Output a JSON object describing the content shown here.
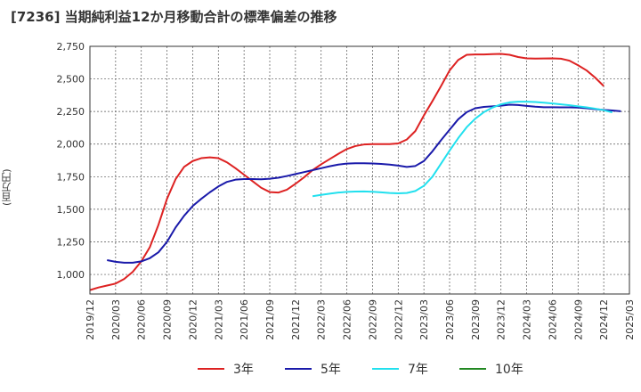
{
  "chart_data": {
    "type": "line",
    "title": "[7236]  当期純利益12か月移動合計の標準偏差の推移",
    "ylabel": "(百万円)",
    "xlabel": "",
    "ylim": [
      850,
      2750
    ],
    "yticks": [
      1000,
      1250,
      1500,
      1750,
      2000,
      2250,
      2500,
      2750
    ],
    "ytick_labels": [
      "1,000",
      "1,250",
      "1,500",
      "1,750",
      "2,000",
      "2,250",
      "2,500",
      "2,750"
    ],
    "x_labels": [
      "2019/12",
      "2020/03",
      "2020/06",
      "2020/09",
      "2020/12",
      "2021/03",
      "2021/06",
      "2021/09",
      "2021/12",
      "2022/03",
      "2022/06",
      "2022/09",
      "2022/12",
      "2023/03",
      "2023/06",
      "2023/09",
      "2023/12",
      "2024/03",
      "2024/06",
      "2024/09",
      "2024/12",
      "2025/03"
    ],
    "grid": true,
    "legend_position": "bottom",
    "series": [
      {
        "name": "3年",
        "color": "#dd2222",
        "start_index": 0,
        "values": [
          880,
          900,
          915,
          930,
          965,
          1020,
          1100,
          1210,
          1380,
          1580,
          1730,
          1825,
          1870,
          1892,
          1898,
          1892,
          1860,
          1815,
          1765,
          1715,
          1665,
          1632,
          1628,
          1650,
          1695,
          1745,
          1800,
          1845,
          1885,
          1925,
          1962,
          1985,
          1997,
          2000,
          2000,
          2000,
          2005,
          2035,
          2100,
          2220,
          2330,
          2445,
          2565,
          2645,
          2685,
          2688,
          2688,
          2690,
          2692,
          2685,
          2668,
          2658,
          2656,
          2657,
          2658,
          2655,
          2640,
          2605,
          2565,
          2510,
          2445
        ]
      },
      {
        "name": "5年",
        "color": "#1a1aaa",
        "start_index": 2,
        "values": [
          1110,
          1097,
          1090,
          1090,
          1100,
          1125,
          1170,
          1250,
          1360,
          1450,
          1525,
          1580,
          1630,
          1675,
          1710,
          1727,
          1732,
          1732,
          1730,
          1734,
          1742,
          1755,
          1770,
          1785,
          1800,
          1815,
          1830,
          1843,
          1850,
          1853,
          1853,
          1851,
          1848,
          1843,
          1835,
          1825,
          1832,
          1870,
          1945,
          2030,
          2110,
          2190,
          2245,
          2275,
          2285,
          2290,
          2295,
          2302,
          2300,
          2293,
          2287,
          2283,
          2283,
          2282,
          2282,
          2280,
          2275,
          2268,
          2262,
          2258,
          2252
        ]
      },
      {
        "name": "7年",
        "color": "#22e0ee",
        "start_index": 26,
        "values": [
          1600,
          1610,
          1620,
          1628,
          1633,
          1636,
          1637,
          1634,
          1630,
          1625,
          1622,
          1625,
          1640,
          1680,
          1750,
          1850,
          1950,
          2045,
          2130,
          2195,
          2245,
          2280,
          2305,
          2320,
          2325,
          2325,
          2323,
          2318,
          2312,
          2305,
          2298,
          2290,
          2282,
          2272,
          2260,
          2243
        ]
      },
      {
        "name": "10年",
        "color": "#228822",
        "start_index": 0,
        "values": []
      }
    ]
  }
}
